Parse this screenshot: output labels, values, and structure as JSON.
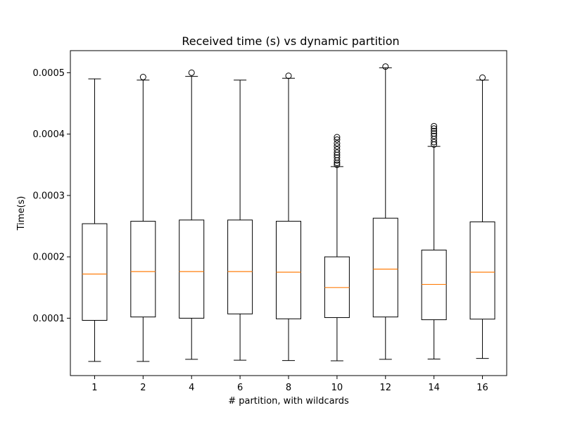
{
  "chart_data": {
    "type": "box",
    "title": "Received time (s) vs dynamic partition",
    "xlabel": "# partition, with wildcards",
    "ylabel": "Time(s)",
    "categories": [
      "1",
      "2",
      "4",
      "6",
      "8",
      "10",
      "12",
      "14",
      "16"
    ],
    "y_ticks": [
      0.0001,
      0.0002,
      0.0003,
      0.0004,
      0.0005
    ],
    "y_tick_labels": [
      "0.0001",
      "0.0002",
      "0.0003",
      "0.0004",
      "0.0005"
    ],
    "ylim": [
      6.5e-06,
      0.000536
    ],
    "grid": false,
    "legend": "none",
    "boxes": [
      {
        "category": "1",
        "whisker_low": 2.95e-05,
        "q1": 9.65e-05,
        "median": 0.000172,
        "q3": 0.000254,
        "whisker_high": 0.00049,
        "outliers": []
      },
      {
        "category": "2",
        "whisker_low": 2.95e-05,
        "q1": 0.000102,
        "median": 0.000176,
        "q3": 0.000258,
        "whisker_high": 0.000488,
        "outliers": [
          0.000493
        ]
      },
      {
        "category": "4",
        "whisker_low": 3.3e-05,
        "q1": 0.0001,
        "median": 0.000176,
        "q3": 0.00026,
        "whisker_high": 0.000494,
        "outliers": [
          0.0005
        ]
      },
      {
        "category": "6",
        "whisker_low": 3.15e-05,
        "q1": 0.000107,
        "median": 0.000176,
        "q3": 0.00026,
        "whisker_high": 0.000488,
        "outliers": []
      },
      {
        "category": "8",
        "whisker_low": 3.1e-05,
        "q1": 9.9e-05,
        "median": 0.000175,
        "q3": 0.000258,
        "whisker_high": 0.000491,
        "outliers": [
          0.000495
        ]
      },
      {
        "category": "10",
        "whisker_low": 3.05e-05,
        "q1": 0.000101,
        "median": 0.00015,
        "q3": 0.0002,
        "whisker_high": 0.000347,
        "outliers": [
          0.00035,
          0.000353,
          0.000357,
          0.000362,
          0.000366,
          0.00037,
          0.000375,
          0.00038,
          0.000385,
          0.000391,
          0.000395
        ]
      },
      {
        "category": "12",
        "whisker_low": 3.3e-05,
        "q1": 0.000102,
        "median": 0.00018,
        "q3": 0.000263,
        "whisker_high": 0.000508,
        "outliers": [
          0.00051
        ]
      },
      {
        "category": "14",
        "whisker_low": 3.35e-05,
        "q1": 9.75e-05,
        "median": 0.000155,
        "q3": 0.000211,
        "whisker_high": 0.00038,
        "outliers": [
          0.000383,
          0.000387,
          0.000392,
          0.000397,
          0.000401,
          0.000405,
          0.000409,
          0.000413
        ]
      },
      {
        "category": "16",
        "whisker_low": 3.45e-05,
        "q1": 9.85e-05,
        "median": 0.000175,
        "q3": 0.000257,
        "whisker_high": 0.000488,
        "outliers": [
          0.000492
        ]
      }
    ],
    "colors": {
      "box": "#000000",
      "median": "#ff7f0e",
      "background": "#ffffff"
    }
  }
}
